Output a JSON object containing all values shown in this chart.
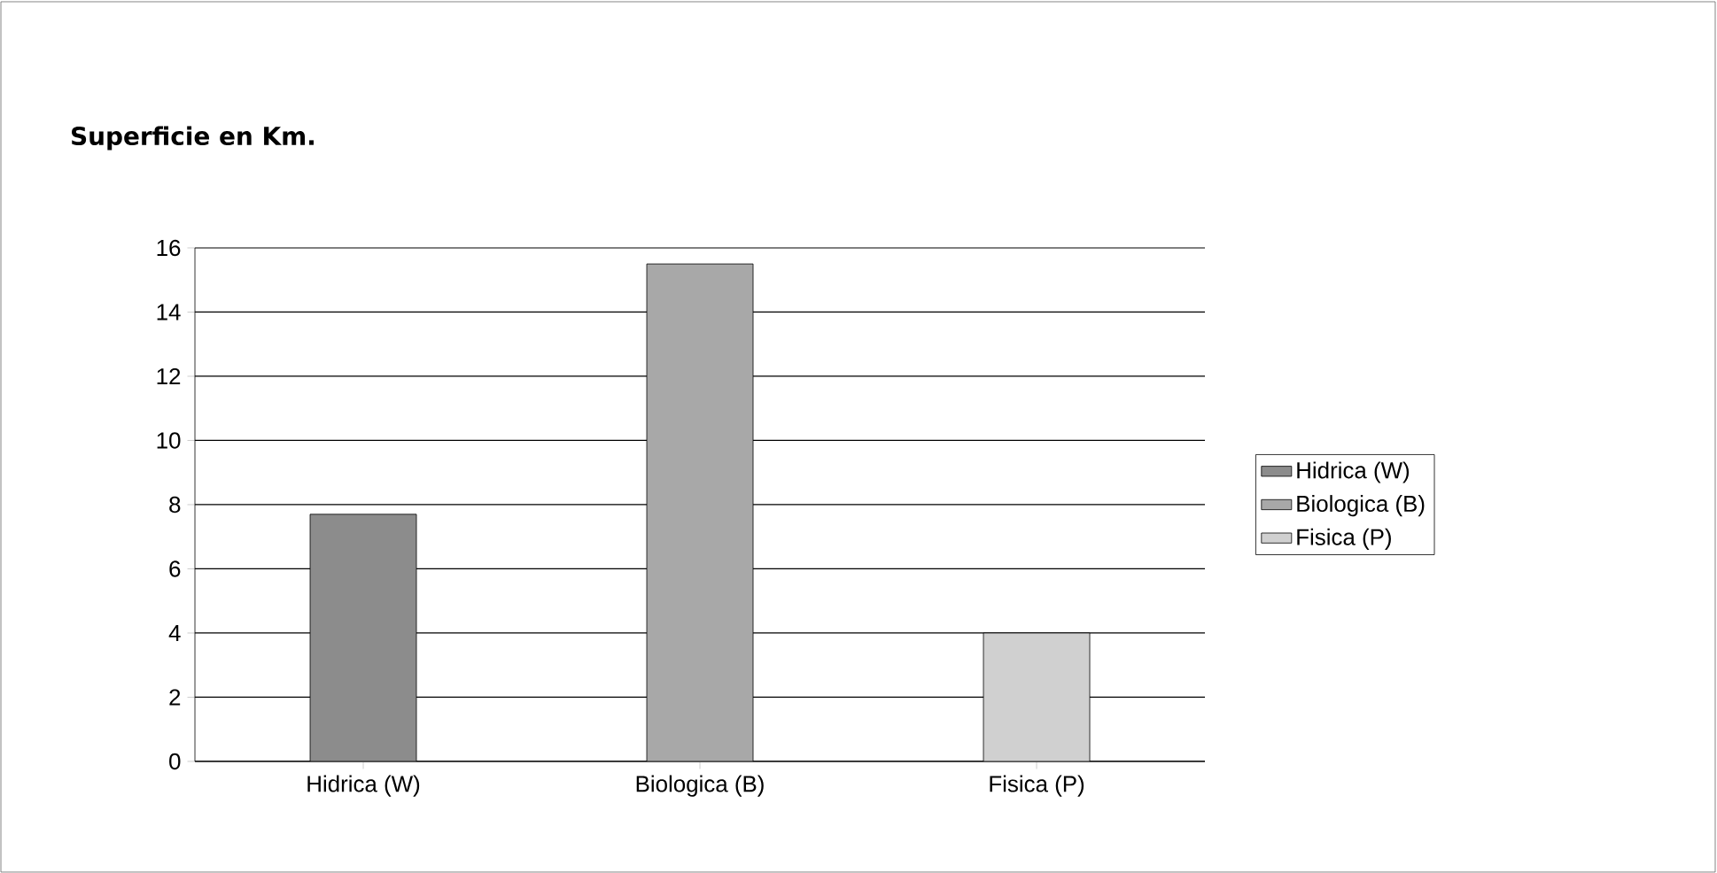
{
  "chart_data": {
    "type": "bar",
    "title": "Superficie en Km.",
    "categories": [
      "Hidrica (W)",
      "Biologica (B)",
      "Fisica (P)"
    ],
    "series": [
      {
        "name": "Hidrica (W)",
        "color": "#8c8c8c",
        "values": [
          7.7,
          null,
          null
        ]
      },
      {
        "name": "Biologica (B)",
        "color": "#a8a8a8",
        "values": [
          null,
          15.5,
          null
        ]
      },
      {
        "name": "Fisica (P)",
        "color": "#d0d0d0",
        "values": [
          null,
          null,
          4
        ]
      }
    ],
    "ylim": [
      0,
      16
    ],
    "yticks": [
      0,
      2,
      4,
      6,
      8,
      10,
      12,
      14,
      16
    ],
    "grid": "y",
    "legend": "right"
  }
}
